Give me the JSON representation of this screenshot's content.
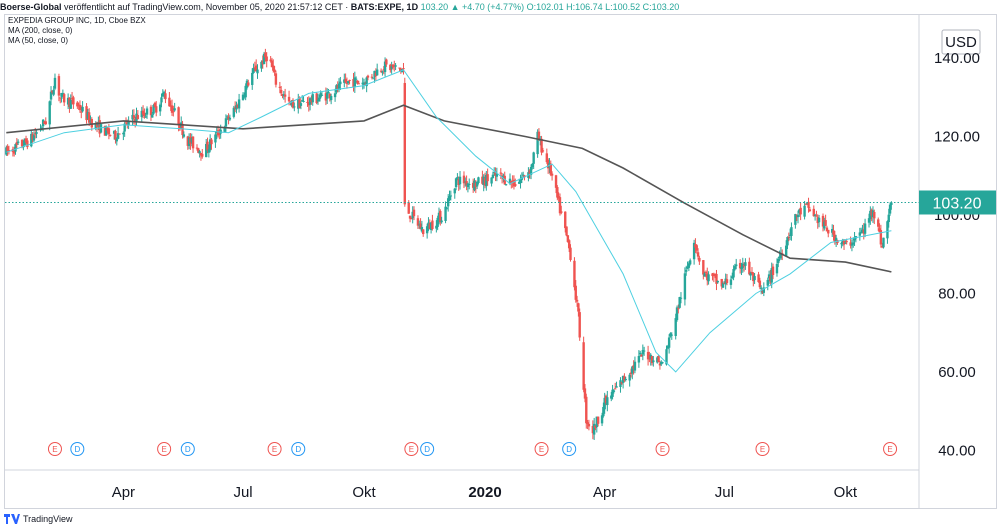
{
  "header": {
    "publisher": "Boerse-Global",
    "published_text": "veröffentlicht auf TradingView.com, November 05, 2020 21:57:12 CET",
    "symbol": "BATS:EXPE, 1D",
    "change": "103.20 ▲ +4.70 (+4.77%)",
    "ohlc": "O:102.01 H:106.74 L:100.52 C:103.20",
    "ohlc_color": "#26a69a"
  },
  "legend": {
    "instrument": "EXPEDIA GROUP INC, 1D, Cboe BZX",
    "ma200": "MA (200, close, 0)",
    "ma50": "MA (50, close, 0)"
  },
  "footer": {
    "brand": "TradingView"
  },
  "chart_data": {
    "type": "candlestick",
    "currency": "USD",
    "ylim": [
      35,
      151
    ],
    "yticks": [
      40,
      60,
      80,
      100,
      120,
      140
    ],
    "ytick_labels": [
      "40.00",
      "60.00",
      "80.00",
      "100.00",
      "120.00",
      "140.00"
    ],
    "xticks": [
      {
        "label": "Apr",
        "date": "2019-04-01",
        "bold": false
      },
      {
        "label": "Jul",
        "date": "2019-07-01",
        "bold": false
      },
      {
        "label": "Okt",
        "date": "2019-10-01",
        "bold": false
      },
      {
        "label": "2020",
        "date": "2020-01-01",
        "bold": true
      },
      {
        "label": "Apr",
        "date": "2020-04-01",
        "bold": false
      },
      {
        "label": "Jul",
        "date": "2020-07-01",
        "bold": false
      },
      {
        "label": "Okt",
        "date": "2020-10-01",
        "bold": false
      }
    ],
    "x_range": [
      "2019-01-01",
      "2020-11-26"
    ],
    "last_price": 103.2,
    "last_price_label": "103.20",
    "colors": {
      "up": "#26a69a",
      "down": "#ef5350",
      "ma200": "#555555",
      "ma50": "#4dd0e1",
      "price_line": "#26a69a"
    },
    "price_path": [
      [
        "2019-01-02",
        116
      ],
      [
        "2019-01-20",
        119
      ],
      [
        "2019-02-01",
        124
      ],
      [
        "2019-02-08",
        135
      ],
      [
        "2019-02-12",
        130
      ],
      [
        "2019-02-25",
        128
      ],
      [
        "2019-03-10",
        123
      ],
      [
        "2019-03-25",
        120
      ],
      [
        "2019-04-10",
        125
      ],
      [
        "2019-04-25",
        127
      ],
      [
        "2019-05-02",
        131
      ],
      [
        "2019-05-10",
        126
      ],
      [
        "2019-05-20",
        119
      ],
      [
        "2019-06-01",
        116
      ],
      [
        "2019-06-10",
        120
      ],
      [
        "2019-06-25",
        127
      ],
      [
        "2019-07-08",
        136
      ],
      [
        "2019-07-20",
        141
      ],
      [
        "2019-07-26",
        134
      ],
      [
        "2019-08-05",
        128
      ],
      [
        "2019-08-20",
        129
      ],
      [
        "2019-09-05",
        131
      ],
      [
        "2019-09-20",
        134
      ],
      [
        "2019-10-01",
        134
      ],
      [
        "2019-10-15",
        138
      ],
      [
        "2019-10-31",
        137
      ],
      [
        "2019-11-01",
        102
      ],
      [
        "2019-11-15",
        96
      ],
      [
        "2019-11-30",
        100
      ],
      [
        "2019-12-10",
        109
      ],
      [
        "2019-12-25",
        108
      ],
      [
        "2020-01-10",
        110
      ],
      [
        "2020-01-25",
        108
      ],
      [
        "2020-02-05",
        112
      ],
      [
        "2020-02-10",
        120
      ],
      [
        "2020-02-20",
        111
      ],
      [
        "2020-02-28",
        100
      ],
      [
        "2020-03-06",
        90
      ],
      [
        "2020-03-12",
        74
      ],
      [
        "2020-03-18",
        48
      ],
      [
        "2020-03-23",
        45
      ],
      [
        "2020-04-01",
        52
      ],
      [
        "2020-04-15",
        58
      ],
      [
        "2020-05-01",
        65
      ],
      [
        "2020-05-15",
        62
      ],
      [
        "2020-05-25",
        74
      ],
      [
        "2020-06-08",
        94
      ],
      [
        "2020-06-15",
        85
      ],
      [
        "2020-06-30",
        82
      ],
      [
        "2020-07-15",
        88
      ],
      [
        "2020-07-30",
        80
      ],
      [
        "2020-08-10",
        88
      ],
      [
        "2020-08-25",
        100
      ],
      [
        "2020-09-02",
        102
      ],
      [
        "2020-09-15",
        97
      ],
      [
        "2020-10-01",
        92
      ],
      [
        "2020-10-15",
        96
      ],
      [
        "2020-10-22",
        102
      ],
      [
        "2020-10-29",
        92
      ],
      [
        "2020-11-05",
        103.2
      ]
    ],
    "ma200": [
      [
        "2019-01-02",
        121
      ],
      [
        "2019-04-01",
        124
      ],
      [
        "2019-07-01",
        122
      ],
      [
        "2019-10-01",
        124
      ],
      [
        "2019-10-31",
        128
      ],
      [
        "2019-12-01",
        124
      ],
      [
        "2020-02-01",
        120
      ],
      [
        "2020-03-15",
        117
      ],
      [
        "2020-04-15",
        112
      ],
      [
        "2020-06-01",
        103
      ],
      [
        "2020-07-15",
        95
      ],
      [
        "2020-08-20",
        89
      ],
      [
        "2020-10-01",
        88
      ],
      [
        "2020-11-05",
        85.5
      ]
    ],
    "ma50": [
      [
        "2019-01-02",
        116
      ],
      [
        "2019-02-15",
        121
      ],
      [
        "2019-04-01",
        123
      ],
      [
        "2019-05-15",
        122
      ],
      [
        "2019-06-20",
        121
      ],
      [
        "2019-07-15",
        125
      ],
      [
        "2019-08-20",
        131
      ],
      [
        "2019-10-01",
        133
      ],
      [
        "2019-10-31",
        137
      ],
      [
        "2019-11-25",
        125
      ],
      [
        "2019-12-25",
        115
      ],
      [
        "2020-01-20",
        108
      ],
      [
        "2020-02-21",
        113
      ],
      [
        "2020-03-10",
        106
      ],
      [
        "2020-04-15",
        85
      ],
      [
        "2020-05-10",
        65
      ],
      [
        "2020-05-25",
        60
      ],
      [
        "2020-06-20",
        70
      ],
      [
        "2020-07-25",
        80
      ],
      [
        "2020-08-20",
        85
      ],
      [
        "2020-09-20",
        93
      ],
      [
        "2020-11-05",
        96
      ]
    ],
    "events": [
      {
        "type": "E",
        "date": "2019-02-08"
      },
      {
        "type": "D",
        "date": "2019-02-25"
      },
      {
        "type": "E",
        "date": "2019-05-02"
      },
      {
        "type": "D",
        "date": "2019-05-20"
      },
      {
        "type": "E",
        "date": "2019-07-25"
      },
      {
        "type": "D",
        "date": "2019-08-12"
      },
      {
        "type": "E",
        "date": "2019-11-06"
      },
      {
        "type": "D",
        "date": "2019-11-18"
      },
      {
        "type": "E",
        "date": "2020-02-13"
      },
      {
        "type": "D",
        "date": "2020-03-05"
      },
      {
        "type": "E",
        "date": "2020-05-15"
      },
      {
        "type": "E",
        "date": "2020-07-30"
      },
      {
        "type": "E",
        "date": "2020-11-04"
      }
    ]
  }
}
